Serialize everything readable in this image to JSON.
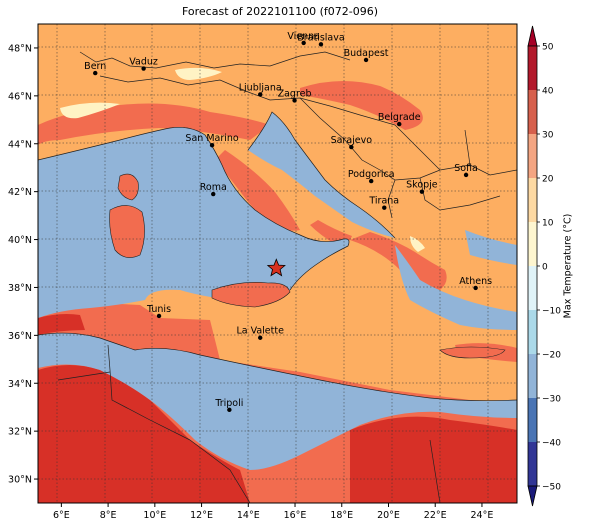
{
  "title": "Forecast of 2022101100 (f072-096)",
  "map": {
    "lon_range": [
      5,
      25.5
    ],
    "lat_range": [
      29,
      49
    ],
    "lon_ticks": [
      "6°E",
      "8°E",
      "10°E",
      "12°E",
      "14°E",
      "16°E",
      "18°E",
      "20°E",
      "22°E",
      "24°E"
    ],
    "lat_ticks": [
      "30°N",
      "32°N",
      "34°N",
      "36°N",
      "38°N",
      "40°N",
      "42°N",
      "44°N",
      "46°N",
      "48°N"
    ],
    "gridlines": "dotted",
    "sea_color": "#91b4d8",
    "cities": [
      {
        "name": "Bern",
        "lon": 7.45,
        "lat": 46.95
      },
      {
        "name": "Vaduz",
        "lon": 9.52,
        "lat": 47.14
      },
      {
        "name": "Vienna",
        "lon": 16.37,
        "lat": 48.21
      },
      {
        "name": "Bratislava",
        "lon": 17.11,
        "lat": 48.15
      },
      {
        "name": "Budapest",
        "lon": 19.04,
        "lat": 47.5
      },
      {
        "name": "Ljubljana",
        "lon": 14.51,
        "lat": 46.06
      },
      {
        "name": "Zagreb",
        "lon": 15.98,
        "lat": 45.81
      },
      {
        "name": "Belgrade",
        "lon": 20.46,
        "lat": 44.82
      },
      {
        "name": "San Marino",
        "lon": 12.45,
        "lat": 43.94
      },
      {
        "name": "Sarajevo",
        "lon": 18.41,
        "lat": 43.86
      },
      {
        "name": "Sofia",
        "lon": 23.32,
        "lat": 42.7
      },
      {
        "name": "Podgorica",
        "lon": 19.26,
        "lat": 42.44
      },
      {
        "name": "Skopje",
        "lon": 21.43,
        "lat": 42.0
      },
      {
        "name": "Roma",
        "lon": 12.5,
        "lat": 41.9
      },
      {
        "name": "Tirana",
        "lon": 19.82,
        "lat": 41.33
      },
      {
        "name": "Athens",
        "lon": 23.73,
        "lat": 37.98
      },
      {
        "name": "Tunis",
        "lon": 10.18,
        "lat": 36.81
      },
      {
        "name": "La Valette",
        "lon": 14.51,
        "lat": 35.9
      },
      {
        "name": "Tripoli",
        "lon": 13.19,
        "lat": 32.89
      }
    ],
    "marker": {
      "symbol": "star",
      "lon": 15.2,
      "lat": 38.8,
      "color": "#d7301f"
    }
  },
  "colorbar": {
    "label": "Max Temperature (°C)",
    "ticks": [
      "50",
      "40",
      "30",
      "20",
      "10",
      "0",
      "−10",
      "−20",
      "−30",
      "−40",
      "−50"
    ],
    "extend": "both",
    "levels": [
      {
        "range": "40 to 50",
        "color": "#b2182b"
      },
      {
        "range": "30 to 40",
        "color": "#d6604d"
      },
      {
        "range": "20 to 30",
        "color": "#f4a582"
      },
      {
        "range": "10 to 20",
        "color": "#fdd9a3"
      },
      {
        "range": "0 to 10",
        "color": "#fef6d0"
      },
      {
        "range": "-10 to 0",
        "color": "#e0f3f8"
      },
      {
        "range": "-20 to -10",
        "color": "#abd9e9"
      },
      {
        "range": "-30 to -20",
        "color": "#91b4d8"
      },
      {
        "range": "-40 to -30",
        "color": "#4a74b4"
      },
      {
        "range": "-50 to -40",
        "color": "#313695"
      }
    ],
    "over_color": "#a50026",
    "under_color": "#1a1a7a"
  },
  "palette": {
    "lt30": "#fdae61",
    "b30_35": "#f26c4f",
    "gt35": "#d73027",
    "cold": "#fff3c4",
    "border": "#222222"
  }
}
